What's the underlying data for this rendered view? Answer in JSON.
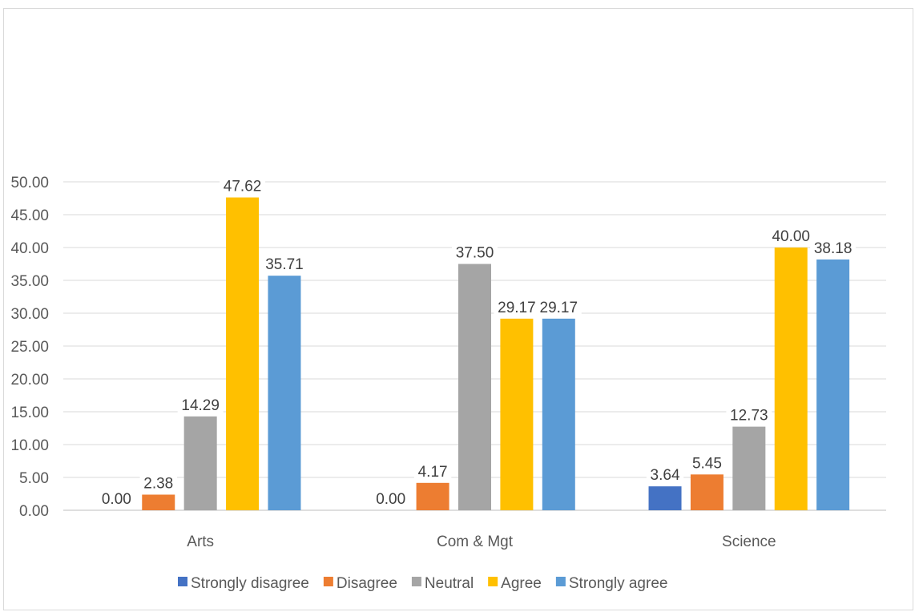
{
  "chart_data": {
    "type": "bar",
    "title": "",
    "xlabel": "",
    "ylabel": "",
    "categories": [
      "Arts",
      "Com & Mgt",
      "Science"
    ],
    "series": [
      {
        "name": "Strongly disagree",
        "color": "#4472C4",
        "values": [
          0.0,
          0.0,
          3.64
        ]
      },
      {
        "name": "Disagree",
        "color": "#ED7D31",
        "values": [
          2.38,
          4.17,
          5.45
        ]
      },
      {
        "name": "Neutral",
        "color": "#A5A5A5",
        "values": [
          14.29,
          37.5,
          12.73
        ]
      },
      {
        "name": "Agree",
        "color": "#FFC000",
        "values": [
          47.62,
          29.17,
          40.0
        ]
      },
      {
        "name": "Strongly agree",
        "color": "#5B9BD5",
        "values": [
          35.71,
          29.17,
          38.18
        ]
      }
    ],
    "data_labels": [
      [
        "0.00",
        "0.00",
        "3.64"
      ],
      [
        "2.38",
        "4.17",
        "5.45"
      ],
      [
        "14.29",
        "37.50",
        "12.73"
      ],
      [
        "47.62",
        "29.17",
        "40.00"
      ],
      [
        "35.71",
        "29.17",
        "38.18"
      ]
    ],
    "y_ticks": [
      "0.00",
      "5.00",
      "10.00",
      "15.00",
      "20.00",
      "25.00",
      "30.00",
      "35.00",
      "40.00",
      "45.00",
      "50.00"
    ],
    "ylim": [
      0,
      50
    ],
    "grid": true,
    "legend_position": "bottom"
  }
}
